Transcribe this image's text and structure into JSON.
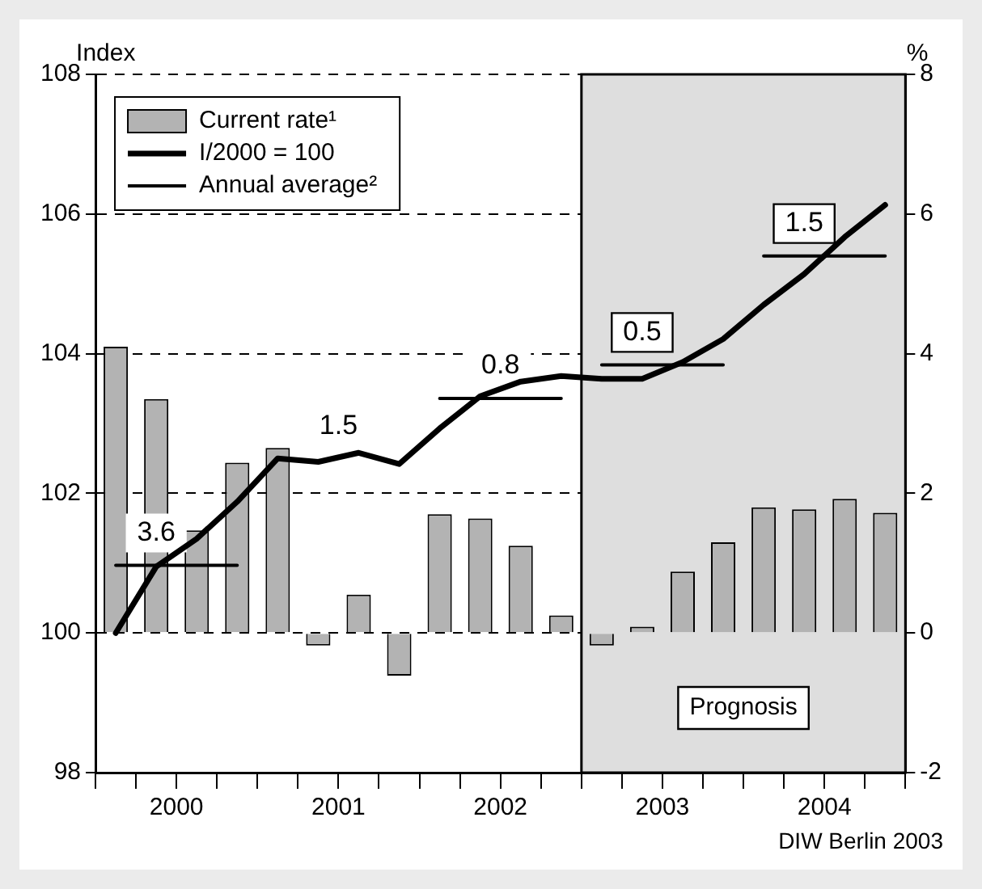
{
  "chart_data": {
    "type": "bar",
    "ylabel": "Index",
    "y2label": "%",
    "x": [
      2000.125,
      2000.375,
      2000.625,
      2000.875,
      2001.125,
      2001.375,
      2001.625,
      2001.875,
      2002.125,
      2002.375,
      2002.625,
      2002.875,
      2003.125,
      2003.375,
      2003.625,
      2003.875,
      2004.125,
      2004.375,
      2004.625,
      2004.875
    ],
    "series": [
      {
        "name": "Current rate¹",
        "axis": "y2",
        "color": "#b3b3b3",
        "values": [
          4.1,
          3.35,
          1.47,
          2.44,
          2.65,
          -0.18,
          0.55,
          -0.61,
          1.7,
          1.64,
          1.25,
          0.25,
          -0.18,
          0.09,
          0.88,
          1.3,
          1.8,
          1.77,
          1.92,
          1.72
        ]
      },
      {
        "name": "I/2000 = 100",
        "type": "line",
        "color": "#000000",
        "values": [
          100,
          100.95,
          101.35,
          101.88,
          102.5,
          102.45,
          102.58,
          102.42,
          102.93,
          103.39,
          103.6,
          103.68,
          103.64,
          103.64,
          103.88,
          104.21,
          104.7,
          105.14,
          105.67,
          106.13
        ]
      },
      {
        "name": "Annual average²",
        "type": "line",
        "color": "#000000",
        "x": [
          2000.125,
          2000.875,
          2001.5,
          2002.125,
          2002.875,
          2003.0,
          2003.125,
          2003.875,
          2004.0,
          2004.125,
          2004.875
        ],
        "values": [
          100.97,
          100.97,
          null,
          103.36,
          103.36,
          null,
          103.84,
          103.84,
          null,
          105.4,
          105.4
        ]
      }
    ],
    "xlim": [
      2000,
      2005
    ],
    "xticks": [
      {
        "value": 2000,
        "label": null
      },
      {
        "value": 2000.25,
        "label": null
      },
      {
        "value": 2000.5,
        "label": "2000"
      },
      {
        "value": 2000.75,
        "label": null
      },
      {
        "value": 2001,
        "label": null
      },
      {
        "value": 2001.25,
        "label": null
      },
      {
        "value": 2001.5,
        "label": "2001"
      },
      {
        "value": 2001.75,
        "label": null
      },
      {
        "value": 2002,
        "label": null
      },
      {
        "value": 2002.25,
        "label": null
      },
      {
        "value": 2002.5,
        "label": "2002"
      },
      {
        "value": 2002.75,
        "label": null
      },
      {
        "value": 2003,
        "label": null
      },
      {
        "value": 2003.25,
        "label": null
      },
      {
        "value": 2003.5,
        "label": "2003"
      },
      {
        "value": 2003.75,
        "label": null
      },
      {
        "value": 2004,
        "label": null
      },
      {
        "value": 2004.25,
        "label": null
      },
      {
        "value": 2004.5,
        "label": "2004"
      },
      {
        "value": 2004.75,
        "label": null
      },
      {
        "value": 2005,
        "label": null
      }
    ],
    "ylim": [
      98,
      108
    ],
    "yticks": [
      98,
      100,
      102,
      104,
      106,
      108
    ],
    "y2lim": [
      -2,
      8
    ],
    "y2ticks": [
      -2,
      0,
      2,
      4,
      6,
      8
    ],
    "bands": [
      {
        "axis": "x",
        "from": 2003,
        "to": 2005,
        "label": "Prognosis",
        "color": "#dedede"
      }
    ],
    "annotations": [
      {
        "text": "3.6",
        "x": 2000.375,
        "y": 100.97
      },
      {
        "text": "1.5",
        "x": 2001.5,
        "y": 102.5
      },
      {
        "text": "0.8",
        "x": 2002.5,
        "y": 103.36
      },
      {
        "text": "0.5",
        "x": 2003.375,
        "y": 103.84
      },
      {
        "text": "1.5",
        "x": 2004.375,
        "y": 105.4
      },
      "DIW Berlin 2003"
    ],
    "grid": "y",
    "legend": "top left"
  }
}
